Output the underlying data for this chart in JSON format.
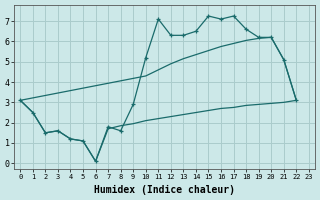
{
  "xlabel": "Humidex (Indice chaleur)",
  "bg_color": "#cce8e8",
  "grid_color": "#aacccc",
  "line_color": "#1a6b6b",
  "xlim": [
    -0.5,
    23.5
  ],
  "ylim": [
    -0.3,
    7.8
  ],
  "xticks": [
    0,
    1,
    2,
    3,
    4,
    5,
    6,
    7,
    8,
    9,
    10,
    11,
    12,
    13,
    14,
    15,
    16,
    17,
    18,
    19,
    20,
    21,
    22,
    23
  ],
  "yticks": [
    0,
    1,
    2,
    3,
    4,
    5,
    6,
    7
  ],
  "zigzag_x": [
    0,
    1,
    2,
    3,
    4,
    5,
    6,
    7,
    8,
    9,
    10,
    11,
    12,
    13,
    14,
    15,
    16,
    17,
    18,
    19,
    20,
    21,
    22
  ],
  "zigzag_y": [
    3.1,
    2.5,
    1.5,
    1.6,
    1.2,
    1.1,
    0.1,
    1.8,
    1.6,
    2.9,
    5.2,
    7.1,
    6.3,
    6.3,
    6.5,
    7.25,
    7.1,
    7.25,
    6.6,
    6.2,
    6.2,
    5.1,
    3.1
  ],
  "upper_diag_x": [
    0,
    10,
    11,
    12,
    13,
    14,
    15,
    16,
    17,
    18,
    19,
    20,
    21,
    22
  ],
  "upper_diag_y": [
    3.1,
    4.3,
    4.6,
    4.9,
    5.15,
    5.35,
    5.55,
    5.75,
    5.9,
    6.05,
    6.15,
    6.2,
    5.1,
    3.1
  ],
  "lower_diag_x": [
    0,
    1,
    2,
    3,
    4,
    5,
    6,
    7,
    8,
    9,
    10,
    11,
    12,
    13,
    14,
    15,
    16,
    17,
    18,
    19,
    20,
    21,
    22
  ],
  "lower_diag_y": [
    3.1,
    2.5,
    1.5,
    1.6,
    1.2,
    1.1,
    0.1,
    1.7,
    1.85,
    1.95,
    2.1,
    2.2,
    2.3,
    2.4,
    2.5,
    2.6,
    2.7,
    2.75,
    2.85,
    2.9,
    2.95,
    3.0,
    3.1
  ]
}
